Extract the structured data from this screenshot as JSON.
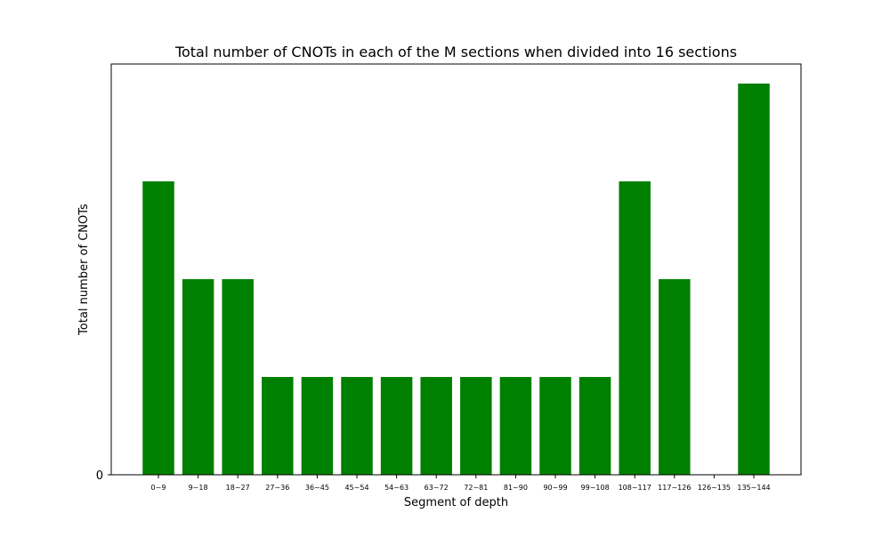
{
  "chart_data": {
    "type": "bar",
    "title": "Total number of CNOTs in each of the M sections when divided into 16 sections",
    "xlabel": "Segment of depth",
    "ylabel": "Total number of CNOTs",
    "categories": [
      "0~9",
      "9~18",
      "18~27",
      "27~36",
      "36~45",
      "45~54",
      "54~63",
      "63~72",
      "72~81",
      "81~90",
      "90~99",
      "99~108",
      "108~117",
      "117~126",
      "126~135",
      "135~144"
    ],
    "values": [
      3,
      2,
      2,
      1,
      1,
      1,
      1,
      1,
      1,
      1,
      1,
      1,
      3,
      2,
      0,
      4
    ],
    "yticks": [
      0
    ],
    "ytick_labels": [
      "0"
    ],
    "ylim": [
      0,
      4.2
    ],
    "bar_color": "#008000",
    "grid": false,
    "legend": "none"
  }
}
